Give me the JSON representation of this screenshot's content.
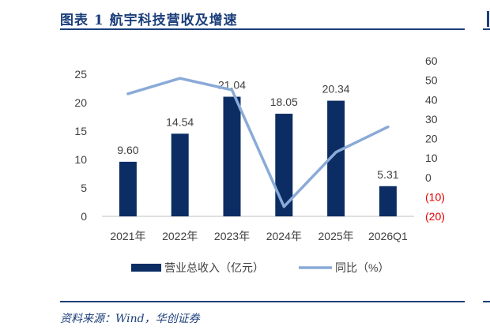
{
  "figure_title": "图表 1   航宇科技营收及增速",
  "source": "资料来源：Wind，华创证券",
  "colors": {
    "bar": "#0b2d63",
    "line": "#8aaad8",
    "accent": "#1c3f7a",
    "negative": "#e60000"
  },
  "chart_data": {
    "type": "bar",
    "title": "",
    "categories": [
      "2021年",
      "2022年",
      "2023年",
      "2024年",
      "2025年",
      "2026Q1"
    ],
    "series": [
      {
        "name": "营业总收入（亿元）",
        "type": "bar",
        "axis": "left",
        "values": [
          9.6,
          14.54,
          21.04,
          18.05,
          20.34,
          5.31
        ]
      },
      {
        "name": "同比（%）",
        "type": "line",
        "axis": "right",
        "values": [
          43,
          51,
          45,
          -15,
          13,
          26
        ]
      }
    ],
    "data_labels": [
      "9.60",
      "14.54",
      "21.04",
      "18.05",
      "20.34",
      "5.31"
    ],
    "y_left": {
      "range": [
        0,
        25
      ],
      "ticks": [
        "0",
        "5",
        "10",
        "15",
        "20",
        "25"
      ]
    },
    "y_right": {
      "range": [
        -20,
        60
      ],
      "ticks": [
        "(20)",
        "(10)",
        "0",
        "10",
        "20",
        "30",
        "40",
        "50",
        "60"
      ]
    },
    "grid": false,
    "legend": "bottom"
  }
}
